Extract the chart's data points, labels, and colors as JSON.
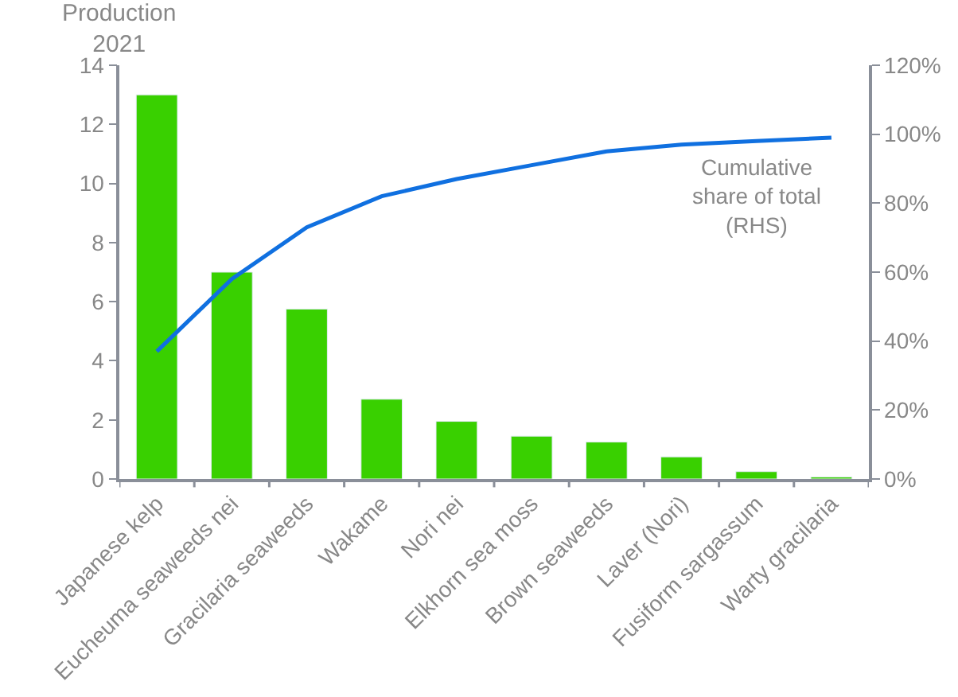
{
  "chart_data": {
    "type": "bar",
    "ylabel": "Production\n2021",
    "categories": [
      "Japanese kelp",
      "Eucheuma seaweeds nei",
      "Gracilaria seaweeds",
      "Wakame",
      "Nori nei",
      "Elkhorn sea moss",
      "Brown seaweeds",
      "Laver (Nori)",
      "Fusiform sargassum",
      "Warty gracilaria"
    ],
    "series": [
      {
        "color": "#39d000",
        "values": [
          13.0,
          7.0,
          5.75,
          2.7,
          1.95,
          1.45,
          1.25,
          0.75,
          0.25,
          0.07
        ]
      },
      {
        "name": "Cumulative\nshare of total\n(RHS)",
        "type": "line",
        "axis": "y2",
        "color": "#1070e0",
        "values": [
          37,
          58,
          73,
          82,
          87,
          91,
          95,
          97,
          98,
          99
        ]
      }
    ],
    "ylim": [
      0,
      14
    ],
    "yticks": [
      0,
      2,
      4,
      6,
      8,
      10,
      12,
      14
    ],
    "y2lim": [
      0,
      120
    ],
    "y2ticks": [
      {
        "value": 0,
        "label": "0%"
      },
      {
        "value": 20,
        "label": "20%"
      },
      {
        "value": 40,
        "label": "40%"
      },
      {
        "value": 60,
        "label": "60%"
      },
      {
        "value": 80,
        "label": "80%"
      },
      {
        "value": 100,
        "label": "100%"
      },
      {
        "value": 120,
        "label": "120%"
      }
    ],
    "legend": false,
    "marker": "none",
    "line_style": "solid"
  }
}
